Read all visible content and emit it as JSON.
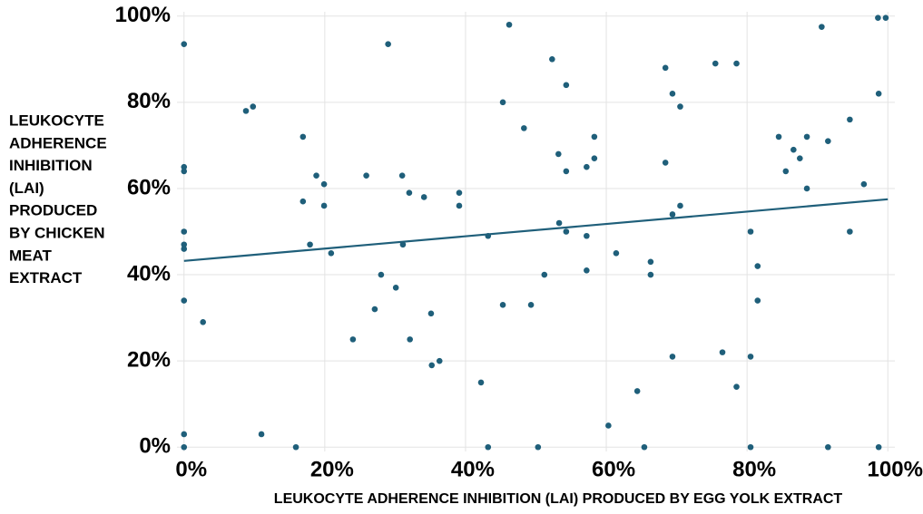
{
  "chart_data": {
    "type": "scatter",
    "x_label": "LEUKOCYTE ADHERENCE INHIBITION (LAI) PRODUCED BY EGG YOLK EXTRACT",
    "y_label_lines": [
      "LEUKOCYTE",
      "ADHERENCE",
      "INHIBITION",
      "(LAI)",
      "PRODUCED",
      "BY CHICKEN",
      "MEAT",
      "EXTRACT"
    ],
    "color": "#1f5f7a",
    "grid": true,
    "xlim": [
      -1,
      101
    ],
    "ylim": [
      -1,
      101
    ],
    "xticks": [
      {
        "value": 0,
        "label": "0%"
      },
      {
        "value": 20,
        "label": "20%"
      },
      {
        "value": 40,
        "label": "40%"
      },
      {
        "value": 60,
        "label": "60%"
      },
      {
        "value": 80,
        "label": "80%"
      },
      {
        "value": 100,
        "label": "100%"
      }
    ],
    "yticks": [
      {
        "value": 0,
        "label": "0%"
      },
      {
        "value": 20,
        "label": "20%"
      },
      {
        "value": 40,
        "label": "40%"
      },
      {
        "value": 60,
        "label": "60%"
      },
      {
        "value": 80,
        "label": "80%"
      },
      {
        "value": 100,
        "label": "100%"
      }
    ],
    "trendline": {
      "x": [
        0,
        100
      ],
      "y": [
        43.2,
        57.5
      ]
    },
    "x": [
      0,
      0,
      0,
      0,
      0,
      0,
      0,
      0,
      0,
      2.7,
      8.8,
      9.8,
      11,
      15.9,
      16.9,
      16.9,
      17.9,
      18.8,
      19.9,
      19.9,
      20.9,
      24,
      25.9,
      27.1,
      28,
      29,
      30.1,
      31,
      31.1,
      32,
      32.1,
      34.1,
      35.1,
      35.2,
      36.3,
      39.1,
      39.1,
      42.2,
      43.2,
      43.2,
      45.3,
      45.3,
      46.2,
      48.3,
      49.3,
      50.3,
      51.2,
      52.3,
      53.2,
      53.3,
      54.3,
      54.3,
      54.3,
      57.2,
      57.2,
      57.2,
      58.3,
      58.3,
      60.3,
      61.4,
      64.4,
      65.4,
      66.3,
      66.3,
      68.4,
      68.4,
      69.4,
      69.4,
      69.4,
      70.5,
      70.5,
      75.5,
      76.5,
      78.5,
      78.5,
      80.5,
      80.5,
      80.5,
      81.5,
      81.5,
      84.5,
      85.5,
      86.6,
      87.5,
      88.5,
      88.5,
      90.6,
      91.5,
      91.5,
      94.6,
      94.6,
      96.6,
      98.6,
      98.7,
      98.7,
      99.7
    ],
    "values": [
      93.5,
      65,
      64,
      50,
      47,
      46,
      34,
      3,
      0,
      29,
      78,
      79,
      3,
      0,
      72,
      57,
      47,
      63,
      61,
      56,
      45,
      25,
      63,
      32,
      40,
      93.5,
      37,
      63,
      47,
      59,
      25,
      58,
      31,
      19,
      20,
      59,
      56,
      15,
      49,
      0,
      80,
      33,
      98,
      74,
      33,
      0,
      40,
      90,
      68,
      52,
      84,
      64,
      50,
      65,
      49,
      41,
      72,
      67,
      5,
      45,
      13,
      0,
      43,
      40,
      66,
      88,
      82,
      54,
      21,
      79,
      56,
      89,
      22,
      89,
      14,
      50,
      21,
      0,
      42,
      34,
      72,
      64,
      69,
      67,
      72,
      60,
      97.5,
      71,
      0,
      76,
      50,
      61,
      99.6,
      82,
      0,
      99.6
    ]
  }
}
